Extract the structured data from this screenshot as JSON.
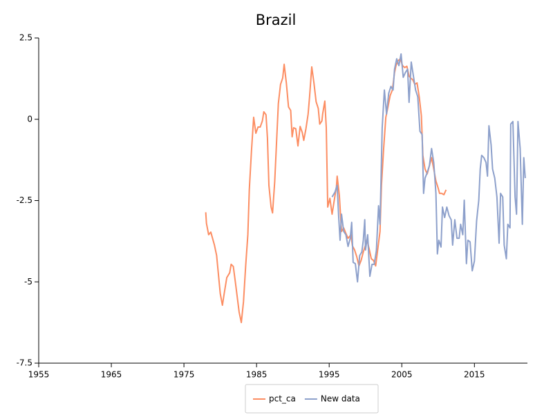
{
  "chart_data": {
    "type": "line",
    "title": "Brazil",
    "xlim": [
      1955,
      2022.3
    ],
    "xticks": [
      1955,
      1965,
      1975,
      1985,
      1995,
      2005,
      2015
    ],
    "ylim": [
      -7.5,
      2.5
    ],
    "yticks": [
      2.5,
      0,
      -2.5,
      -5,
      -7.5
    ],
    "legend": "bottom",
    "series": [
      {
        "name": "pct_ca",
        "color": "#fc8d62",
        "x": [
          1978.0,
          1978.1,
          1978.4,
          1978.7,
          1979.2,
          1979.5,
          1980.0,
          1980.3,
          1980.5,
          1980.9,
          1981.3,
          1981.5,
          1981.8,
          1982.1,
          1982.6,
          1982.9,
          1983.2,
          1983.5,
          1983.8,
          1984.0,
          1984.3,
          1984.6,
          1984.9,
          1985.2,
          1985.5,
          1985.8,
          1986.0,
          1986.3,
          1986.5,
          1986.7,
          1987.0,
          1987.2,
          1987.5,
          1987.8,
          1988.0,
          1988.3,
          1988.6,
          1988.8,
          1989.1,
          1989.4,
          1989.7,
          1989.9,
          1990.1,
          1990.4,
          1990.7,
          1991.0,
          1991.3,
          1991.5,
          1991.8,
          1992.1,
          1992.3,
          1992.6,
          1992.9,
          1993.2,
          1993.5,
          1993.7,
          1994.0,
          1994.1,
          1994.4,
          1994.6,
          1994.8,
          1995.1,
          1995.4,
          1995.7,
          1996.0,
          1996.1,
          1996.4,
          1996.7,
          1997.0,
          1997.3,
          1997.6,
          1998.0,
          1998.2,
          1998.5,
          1998.8,
          1999.1,
          1999.4,
          1999.7,
          2000.0,
          2000.2,
          2000.5,
          2000.8,
          2001.1,
          2001.4,
          2001.7,
          2002.0,
          2002.2,
          2002.5,
          2002.8,
          2003.1,
          2003.4,
          2003.7,
          2004.0,
          2004.2,
          2004.5,
          2004.8,
          2005.1,
          2005.4,
          2005.7,
          2006.0,
          2006.2,
          2006.5,
          2006.8,
          2007.1,
          2007.4,
          2007.7,
          2007.9,
          2008.2,
          2008.5,
          2008.8,
          2009.1,
          2009.4,
          2009.7,
          2010.0,
          2010.2,
          2010.5,
          2010.8,
          2011.1
        ],
        "values": [
          -2.86,
          -3.2,
          -3.55,
          -3.47,
          -3.87,
          -4.19,
          -5.36,
          -5.72,
          -5.42,
          -4.87,
          -4.72,
          -4.46,
          -4.53,
          -5.04,
          -5.93,
          -6.25,
          -5.61,
          -4.51,
          -3.55,
          -2.17,
          -0.97,
          0.06,
          -0.43,
          -0.24,
          -0.24,
          -0.05,
          0.23,
          0.14,
          -0.58,
          -2.03,
          -2.7,
          -2.88,
          -1.92,
          -0.48,
          0.48,
          1.07,
          1.27,
          1.69,
          1.12,
          0.38,
          0.27,
          -0.54,
          -0.26,
          -0.29,
          -0.82,
          -0.22,
          -0.41,
          -0.65,
          -0.29,
          0.16,
          0.69,
          1.61,
          1.12,
          0.54,
          0.33,
          -0.15,
          -0.05,
          0.16,
          0.56,
          -0.26,
          -2.7,
          -2.43,
          -2.92,
          -2.49,
          -2.07,
          -1.75,
          -2.34,
          -3.45,
          -3.34,
          -3.51,
          -3.66,
          -3.55,
          -3.89,
          -4.02,
          -4.23,
          -4.51,
          -4.34,
          -4.08,
          -3.87,
          -3.7,
          -3.98,
          -4.29,
          -4.34,
          -4.51,
          -3.98,
          -3.45,
          -2.03,
          -0.9,
          0.06,
          0.38,
          0.73,
          0.9,
          1.43,
          1.65,
          1.8,
          1.86,
          1.65,
          1.59,
          1.63,
          1.33,
          1.27,
          1.22,
          1.07,
          1.12,
          0.69,
          0.1,
          -1.11,
          -1.53,
          -1.68,
          -1.43,
          -1.18,
          -1.53,
          -1.9,
          -2.11,
          -2.28,
          -2.28,
          -2.32,
          -2.17
        ]
      },
      {
        "name": "New data",
        "color": "#8da0cb",
        "x": [
          1995.4,
          1995.8,
          1996.1,
          1996.3,
          1996.5,
          1996.7,
          1997.0,
          1997.3,
          1997.6,
          1997.9,
          1998.1,
          1998.3,
          1998.6,
          1998.9,
          1999.2,
          1999.5,
          1999.7,
          1999.9,
          2000.0,
          2000.3,
          2000.6,
          2000.9,
          2001.2,
          2001.5,
          2001.8,
          2002.0,
          2002.3,
          2002.6,
          2002.9,
          2003.2,
          2003.5,
          2003.8,
          2004.0,
          2004.3,
          2004.6,
          2004.9,
          2005.2,
          2005.5,
          2005.8,
          2006.0,
          2006.3,
          2006.6,
          2006.9,
          2007.2,
          2007.5,
          2007.8,
          2008.0,
          2008.2,
          2008.5,
          2008.8,
          2009.1,
          2009.4,
          2009.7,
          2009.9,
          2010.1,
          2010.4,
          2010.6,
          2010.9,
          2011.2,
          2011.5,
          2011.8,
          2012.0,
          2012.3,
          2012.6,
          2012.9,
          2013.1,
          2013.4,
          2013.6,
          2013.9,
          2014.1,
          2014.4,
          2014.7,
          2015.0,
          2015.3,
          2015.6,
          2015.8,
          2016.0,
          2016.3,
          2016.6,
          2016.8,
          2017.0,
          2017.3,
          2017.5,
          2017.8,
          2018.1,
          2018.4,
          2018.6,
          2018.9,
          2019.1,
          2019.4,
          2019.6,
          2019.9,
          2020.0,
          2020.3,
          2020.6,
          2020.8,
          2021.0,
          2021.3,
          2021.6,
          2021.8,
          2022.0
        ],
        "values": [
          -2.39,
          -2.24,
          -2.03,
          -2.96,
          -3.72,
          -2.92,
          -3.45,
          -3.55,
          -3.91,
          -3.66,
          -3.17,
          -4.4,
          -4.44,
          -5.0,
          -4.19,
          -4.08,
          -3.72,
          -3.09,
          -4.02,
          -3.55,
          -4.83,
          -4.46,
          -4.46,
          -4.04,
          -2.66,
          -3.23,
          -0.26,
          0.9,
          0.16,
          0.8,
          1.01,
          0.9,
          1.54,
          1.86,
          1.65,
          2.01,
          1.29,
          1.44,
          1.54,
          0.52,
          1.76,
          1.33,
          0.9,
          0.69,
          -0.37,
          -0.47,
          -2.28,
          -1.81,
          -1.64,
          -1.43,
          -0.9,
          -1.33,
          -2.28,
          -4.14,
          -3.72,
          -3.93,
          -2.7,
          -3.02,
          -2.7,
          -2.96,
          -3.09,
          -3.87,
          -3.09,
          -3.66,
          -3.66,
          -3.23,
          -3.55,
          -2.49,
          -4.44,
          -3.72,
          -3.77,
          -4.66,
          -4.36,
          -3.13,
          -2.49,
          -1.53,
          -1.11,
          -1.18,
          -1.33,
          -1.75,
          -0.2,
          -0.79,
          -1.53,
          -1.81,
          -2.39,
          -3.81,
          -2.28,
          -2.39,
          -3.87,
          -4.29,
          -3.23,
          -3.34,
          -0.15,
          -0.07,
          -2.39,
          -2.92,
          -0.07,
          -0.9,
          -3.23,
          -1.18,
          -1.81
        ]
      }
    ]
  }
}
